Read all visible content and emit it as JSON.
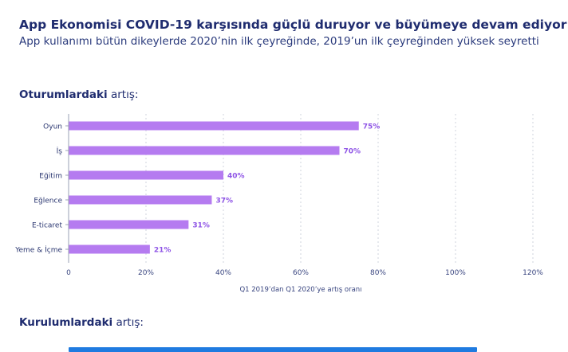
{
  "header": {
    "title": "App Ekonomisi COVID-19 karşısında güçlü duruyor ve büyümeye devam ediyor",
    "subtitle": "App kullanımı bütün dikeylerde 2020’nin ilk çeyreğinde, 2019’un ilk çeyreğinden yüksek seyretti"
  },
  "sections": [
    {
      "bold": "Oturumlardaki",
      "rest": " artış:"
    },
    {
      "bold": "Kurulumlardaki",
      "rest": " artış:"
    }
  ],
  "colors": {
    "sessions_bar": "#b57bf0",
    "installs_bar": "#1f7be0",
    "label": "#8f55e6"
  },
  "chart_data": [
    {
      "type": "bar",
      "orientation": "horizontal",
      "categories": [
        "Oyun",
        "İş",
        "Eğitim",
        "Eğlence",
        "E-ticaret",
        "Yeme & İçme"
      ],
      "values": [
        75,
        70,
        40,
        37,
        31,
        21
      ],
      "value_labels": [
        "75%",
        "70%",
        "40%",
        "37%",
        "31%",
        "21%"
      ],
      "xlim": [
        0,
        120
      ],
      "xticks": [
        0,
        20,
        40,
        60,
        80,
        100,
        120
      ],
      "xtick_labels": [
        "0",
        "20%",
        "40%",
        "60%",
        "80%",
        "100%",
        "120%"
      ],
      "xlabel": "Q1 2019’dan Q1 2020’ye artış oranı",
      "ylabel": "",
      "grid": true
    }
  ]
}
